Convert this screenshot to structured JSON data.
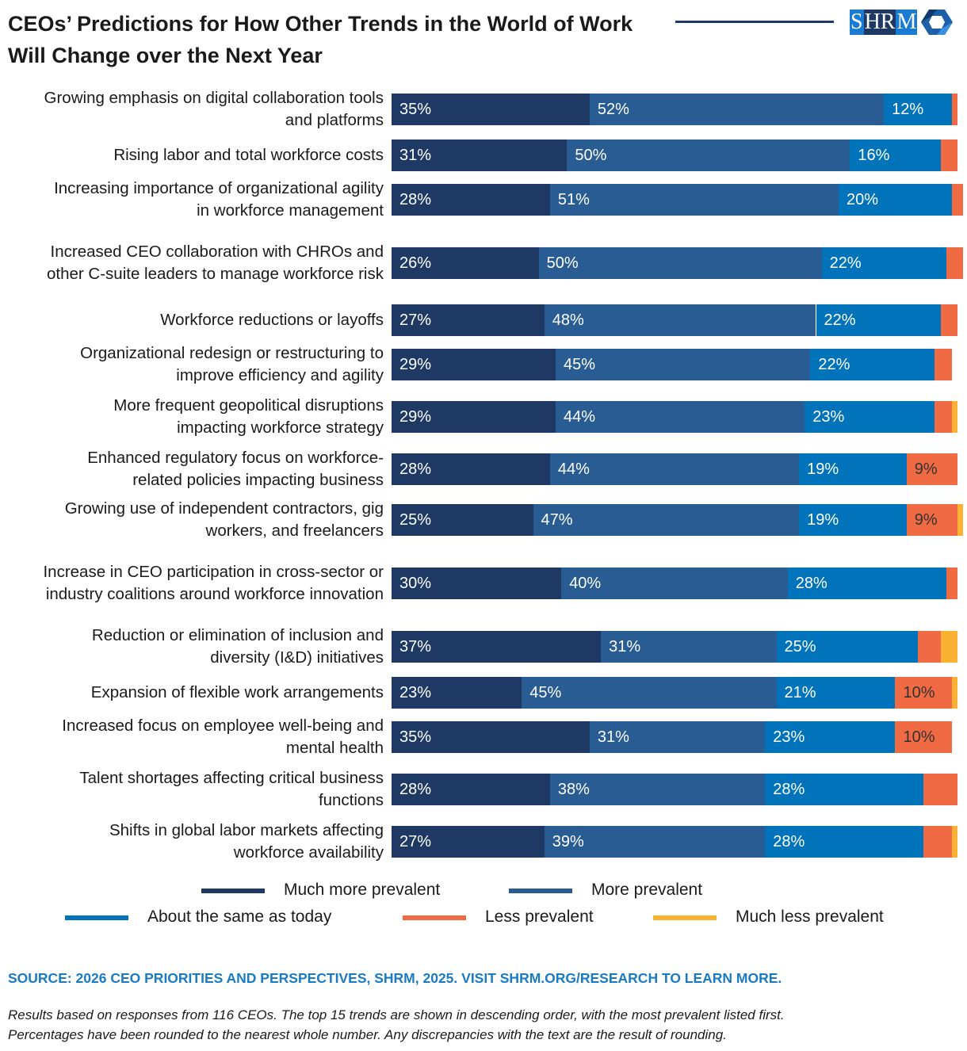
{
  "chart_data": {
    "type": "bar",
    "orientation": "horizontal-stacked",
    "title": "CEOs’ Predictions for How Other Trends in the World of Work Will Change over the Next Year",
    "xlim": [
      0,
      100
    ],
    "grid": false,
    "legend_placement": "bottom",
    "categories": [
      "Growing emphasis on digital collaboration tools and platforms",
      "Rising labor and total workforce costs",
      "Increasing importance of organizational agility in workforce management",
      "Increased CEO collaboration with CHROs and other C-suite leaders to manage workforce risk",
      "Workforce reductions or layoffs",
      "Organizational redesign or restructuring to improve efficiency and agility",
      "More frequent geopolitical disruptions impacting workforce strategy",
      "Enhanced regulatory focus on workforce-related policies impacting business",
      "Growing use of independent contractors, gig workers, and freelancers",
      "Increase in CEO participation in cross-sector or industry coalitions around workforce innovation",
      "Reduction or elimination of inclusion and diversity (I&D) initiatives",
      "Expansion of flexible work arrangements",
      "Increased focus on employee well-being and mental health",
      "Talent shortages affecting critical business functions",
      "Shifts in global labor markets affecting workforce availability"
    ],
    "series": [
      {
        "name": "Much more prevalent",
        "color": "#1e3a64",
        "values": [
          35,
          31,
          28,
          26,
          27,
          29,
          29,
          28,
          25,
          30,
          37,
          23,
          35,
          28,
          27
        ]
      },
      {
        "name": "More prevalent",
        "color": "#285c92",
        "values": [
          52,
          50,
          51,
          50,
          48,
          45,
          44,
          44,
          47,
          40,
          31,
          45,
          31,
          38,
          39
        ]
      },
      {
        "name": "About the same as today",
        "color": "#0073bb",
        "values": [
          12,
          16,
          20,
          22,
          22,
          22,
          23,
          19,
          19,
          28,
          25,
          21,
          23,
          28,
          28
        ]
      },
      {
        "name": "Less prevalent",
        "color": "#f06a43",
        "values": [
          1,
          3,
          2,
          3,
          3,
          3,
          3,
          9,
          9,
          2,
          4,
          10,
          10,
          6,
          5
        ]
      },
      {
        "name": "Much less prevalent",
        "color": "#fbb232",
        "values": [
          0,
          0,
          0,
          0,
          0,
          0,
          1,
          0,
          1,
          0,
          3,
          1,
          0,
          0,
          1
        ]
      }
    ],
    "label_threshold": 9
  },
  "header": {
    "logo_text": "SHRM"
  },
  "source": "SOURCE: 2026 CEO PRIORITIES AND PERSPECTIVES, SHRM, 2025. VISIT SHRM.ORG/RESEARCH TO LEARN MORE.",
  "notes": [
    "Results based on responses from 116 CEOs. The top 15 trends are shown in descending order, with the most prevalent listed first.",
    "Percentages have been rounded to the nearest whole number. Any discrepancies with the text are the result of rounding."
  ]
}
